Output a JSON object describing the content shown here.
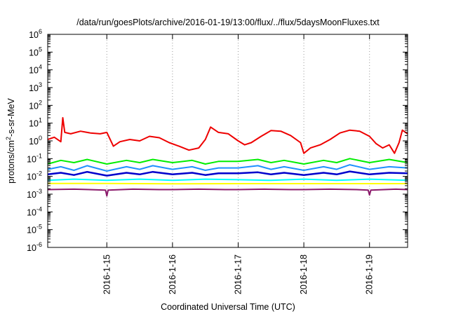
{
  "chart_data": {
    "type": "line",
    "title": "/data/run/goesPlots/archive/2016-01-19/13:00/flux/../flux/5daysMoonFluxes.txt",
    "xlabel": "Coordinated Universal Time (UTC)",
    "ylabel": "protons/cm2-s-sr-MeV",
    "ylabel_parts": {
      "pre": "protons/cm",
      "sup": "2",
      "post": "-s-sr-MeV"
    },
    "yscale": "log",
    "ylim_exp": [
      -6,
      6
    ],
    "xlim": [
      14.1,
      19.58
    ],
    "x_ticks": [
      {
        "x": 15,
        "label": "2016-1-15"
      },
      {
        "x": 16,
        "label": "2016-1-16"
      },
      {
        "x": 17,
        "label": "2016-1-17"
      },
      {
        "x": 18,
        "label": "2016-1-18"
      },
      {
        "x": 19,
        "label": "2016-1-19"
      }
    ],
    "y_ticks": [
      {
        "exp": -6,
        "base": "10",
        "sup": "-6"
      },
      {
        "exp": -5,
        "base": "10",
        "sup": "-5"
      },
      {
        "exp": -4,
        "base": "10",
        "sup": "-4"
      },
      {
        "exp": -3,
        "base": "10",
        "sup": "-3"
      },
      {
        "exp": -2,
        "base": "10",
        "sup": "-2"
      },
      {
        "exp": -1,
        "base": "10",
        "sup": "-1"
      },
      {
        "exp": 0,
        "base": "10",
        "sup": "0"
      },
      {
        "exp": 1,
        "base": "10",
        "sup": "1"
      },
      {
        "exp": 2,
        "base": "10",
        "sup": "2"
      },
      {
        "exp": 3,
        "base": "10",
        "sup": "3"
      },
      {
        "exp": 4,
        "base": "10",
        "sup": "4"
      },
      {
        "exp": 5,
        "base": "10",
        "sup": "5"
      },
      {
        "exp": 6,
        "base": "10",
        "sup": "6"
      }
    ],
    "grid": "dotted at major ticks",
    "legend": "none",
    "series": [
      {
        "color": "#ffff00",
        "width": 2,
        "x": [
          14.1,
          15.0,
          16.0,
          17.0,
          18.0,
          19.0,
          19.58
        ],
        "y": [
          0.004,
          0.004,
          0.0038,
          0.0039,
          0.0039,
          0.0039,
          0.0039
        ]
      },
      {
        "color": "#00ffff",
        "width": 2,
        "x": [
          14.1,
          14.5,
          15.0,
          15.5,
          16.0,
          16.5,
          17.0,
          17.5,
          18.0,
          18.5,
          19.0,
          19.58
        ],
        "y": [
          0.006,
          0.007,
          0.006,
          0.007,
          0.006,
          0.007,
          0.0065,
          0.006,
          0.007,
          0.006,
          0.007,
          0.006
        ]
      },
      {
        "color": "#00ee00",
        "width": 2,
        "x": [
          14.1,
          14.3,
          14.5,
          14.7,
          15.0,
          15.3,
          15.5,
          15.7,
          16.0,
          16.3,
          16.5,
          16.7,
          17.0,
          17.3,
          17.5,
          17.7,
          18.0,
          18.3,
          18.5,
          18.7,
          19.0,
          19.3,
          19.58
        ],
        "y": [
          0.05,
          0.08,
          0.06,
          0.09,
          0.05,
          0.08,
          0.06,
          0.09,
          0.06,
          0.08,
          0.05,
          0.07,
          0.07,
          0.09,
          0.06,
          0.08,
          0.05,
          0.08,
          0.06,
          0.1,
          0.06,
          0.09,
          0.06
        ]
      },
      {
        "color": "#1e90ff",
        "width": 2,
        "x": [
          14.1,
          14.3,
          14.5,
          14.7,
          15.0,
          15.3,
          15.5,
          15.7,
          16.0,
          16.3,
          16.5,
          16.7,
          17.0,
          17.3,
          17.5,
          17.7,
          18.0,
          18.3,
          18.5,
          18.7,
          19.0,
          19.3,
          19.58
        ],
        "y": [
          0.025,
          0.035,
          0.022,
          0.04,
          0.02,
          0.035,
          0.025,
          0.04,
          0.025,
          0.035,
          0.022,
          0.03,
          0.03,
          0.04,
          0.025,
          0.035,
          0.022,
          0.035,
          0.025,
          0.045,
          0.025,
          0.035,
          0.03
        ]
      },
      {
        "color": "#0000cc",
        "width": 2.5,
        "x": [
          14.1,
          14.3,
          14.5,
          14.7,
          15.0,
          15.3,
          15.5,
          15.7,
          16.0,
          16.3,
          16.5,
          16.7,
          17.0,
          17.3,
          17.5,
          17.7,
          18.0,
          18.3,
          18.5,
          18.7,
          19.0,
          19.3,
          19.58
        ],
        "y": [
          0.013,
          0.016,
          0.012,
          0.018,
          0.011,
          0.016,
          0.013,
          0.018,
          0.013,
          0.016,
          0.012,
          0.015,
          0.015,
          0.017,
          0.013,
          0.016,
          0.012,
          0.016,
          0.013,
          0.019,
          0.013,
          0.016,
          0.015
        ]
      },
      {
        "color": "#8b1a6b",
        "width": 2,
        "x": [
          14.1,
          14.5,
          14.98,
          15.0,
          15.02,
          15.4,
          15.8,
          16.0,
          16.4,
          16.8,
          17.0,
          17.4,
          17.8,
          18.0,
          18.4,
          18.8,
          18.98,
          19.0,
          19.02,
          19.4,
          19.58
        ],
        "y": [
          0.0018,
          0.0019,
          0.0017,
          0.0008,
          0.0017,
          0.0019,
          0.0018,
          0.0018,
          0.0019,
          0.0018,
          0.0018,
          0.0019,
          0.0018,
          0.0018,
          0.0019,
          0.0018,
          0.0017,
          0.0009,
          0.0017,
          0.0019,
          0.0018
        ]
      },
      {
        "color": "#ee0000",
        "width": 2,
        "x": [
          14.1,
          14.2,
          14.3,
          14.33,
          14.36,
          14.45,
          14.6,
          14.75,
          14.9,
          15.0,
          15.1,
          15.2,
          15.35,
          15.5,
          15.65,
          15.8,
          15.95,
          16.1,
          16.25,
          16.4,
          16.5,
          16.58,
          16.7,
          16.85,
          17.0,
          17.1,
          17.2,
          17.35,
          17.5,
          17.65,
          17.8,
          17.95,
          18.0,
          18.1,
          18.25,
          18.4,
          18.55,
          18.7,
          18.85,
          19.0,
          19.1,
          19.2,
          19.3,
          19.38,
          19.45,
          19.5,
          19.58
        ],
        "y": [
          1.2,
          1.6,
          0.9,
          20.0,
          3.0,
          2.5,
          3.5,
          2.8,
          2.5,
          3.0,
          0.5,
          0.9,
          1.2,
          1.0,
          1.8,
          1.5,
          0.8,
          0.5,
          0.3,
          0.4,
          1.2,
          6.0,
          3.0,
          2.5,
          1.0,
          0.6,
          0.8,
          1.8,
          3.8,
          3.5,
          2.0,
          0.8,
          0.2,
          0.4,
          0.6,
          1.2,
          2.8,
          4.0,
          3.5,
          1.8,
          0.7,
          0.4,
          0.6,
          0.2,
          0.8,
          4.0,
          2.5
        ]
      }
    ]
  }
}
